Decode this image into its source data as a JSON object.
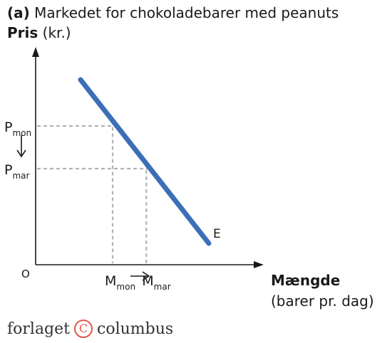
{
  "chart_data": {
    "type": "line",
    "panel_label": "(a)",
    "title": "Markedet for chokoladebarer med peanuts",
    "ylabel": "Pris",
    "yunit": "(kr.)",
    "xlabel": "Mængde",
    "xunit": "(barer pr. dag)",
    "origin_label": "O",
    "series": [
      {
        "name": "E",
        "points": [
          [
            1.4,
            5.2
          ],
          [
            5.4,
            0.6
          ]
        ]
      }
    ],
    "xlim": [
      0,
      9
    ],
    "ylim": [
      0,
      6
    ],
    "price_levels": [
      {
        "base": "P",
        "sub": "mon",
        "y": 3.9
      },
      {
        "base": "P",
        "sub": "mar",
        "y": 2.7
      }
    ],
    "quantity_levels": [
      {
        "base": "M",
        "sub": "mon",
        "x": 2.4
      },
      {
        "base": "M",
        "sub": "mar",
        "x": 3.45
      }
    ],
    "colors": {
      "curve": "#3d6fb8",
      "guides": "#b3b3b3",
      "axes": "#1a1a1a"
    }
  },
  "footer": {
    "brand_left": "forlaget",
    "brand_mark": "C",
    "brand_right": "columbus"
  }
}
